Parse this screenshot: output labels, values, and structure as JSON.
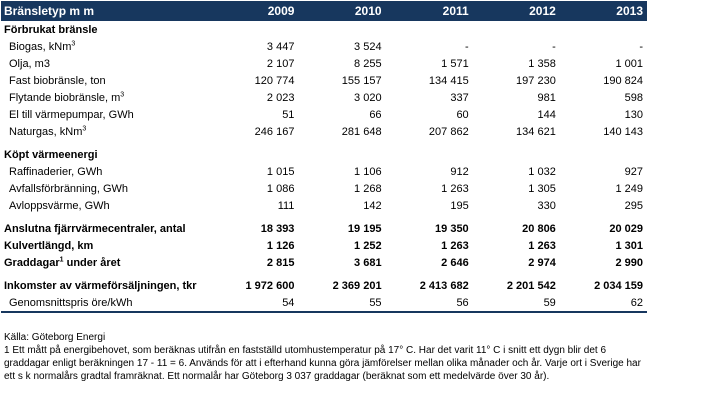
{
  "header": {
    "label": "Bränsletyp m m",
    "years": [
      "2009",
      "2010",
      "2011",
      "2012",
      "2013"
    ]
  },
  "sections": {
    "fuel": {
      "title": "Förbrukat bränsle",
      "rows": [
        {
          "label": "Biogas, kNm",
          "sup": "3",
          "values": [
            "3 447",
            "3 524",
            "-",
            "-",
            "-"
          ]
        },
        {
          "label": "Olja, m3",
          "values": [
            "2 107",
            "8 255",
            "1 571",
            "1 358",
            "1 001"
          ]
        },
        {
          "label": "Fast biobränsle, ton",
          "values": [
            "120 774",
            "155 157",
            "134 415",
            "197 230",
            "190 824"
          ]
        },
        {
          "label": "Flytande biobränsle, m",
          "sup": "3",
          "values": [
            "2 023",
            "3 020",
            "337",
            "981",
            "598"
          ]
        },
        {
          "label": "El till värmepumpar, GWh",
          "values": [
            "51",
            "66",
            "60",
            "144",
            "130"
          ]
        },
        {
          "label": "Naturgas, kNm",
          "sup": "3",
          "values": [
            "246 167",
            "281 648",
            "207 862",
            "134 621",
            "140 143"
          ]
        }
      ]
    },
    "heat": {
      "title": "Köpt värmeenergi",
      "rows": [
        {
          "label": "Raffinaderier, GWh",
          "values": [
            "1 015",
            "1 106",
            "912",
            "1 032",
            "927"
          ]
        },
        {
          "label": "Avfallsförbränning, GWh",
          "values": [
            "1 086",
            "1 268",
            "1 263",
            "1 305",
            "1 249"
          ]
        },
        {
          "label": "Avloppsvärme, GWh",
          "values": [
            "111",
            "142",
            "195",
            "330",
            "295"
          ]
        }
      ]
    },
    "stats": [
      {
        "label": "Anslutna fjärrvärmecentraler, antal",
        "values": [
          "18 393",
          "19 195",
          "19 350",
          "20 806",
          "20 029"
        ]
      },
      {
        "label": "Kulvertlängd, km",
        "values": [
          "1 126",
          "1 252",
          "1 263",
          "1 263",
          "1 301"
        ]
      },
      {
        "label": "Graddagar",
        "sup": "1",
        "label_suffix": " under året",
        "values": [
          "2 815",
          "3 681",
          "2 646",
          "2 974",
          "2 990"
        ]
      }
    ],
    "income": {
      "title_row": {
        "label": "Inkomster av värmeförsäljningen, tkr",
        "values": [
          "1 972 600",
          "2 369 201",
          "2 413 682",
          "2 201 542",
          "2 034 159"
        ]
      },
      "sub_row": {
        "label": "Genomsnittspris öre/kWh",
        "values": [
          "54",
          "55",
          "56",
          "59",
          "62"
        ]
      }
    }
  },
  "notes": {
    "source": "Källa:  Göteborg Energi",
    "footnote": "1  Ett mått på energibehovet, som beräknas utifrån en fastställd utomhustemperatur på 17° C. Har det varit 11° C i snitt ett dygn blir det 6 graddagar enligt beräkningen 17 - 11 = 6. Används för att i efterhand kunna göra jämförelser mellan olika månader och år. Varje ort i Sverige har ett s k normalårs gradtal framräknat. Ett normalår har Göteborg 3 037 graddagar (beräknat som ett medelvärde över 30 år)."
  }
}
